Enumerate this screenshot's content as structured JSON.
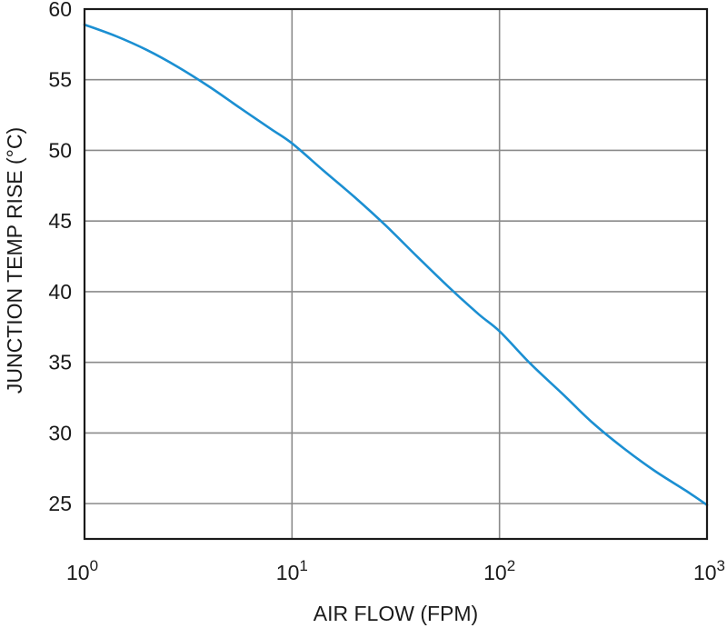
{
  "chart_data": {
    "type": "line",
    "title": "",
    "xlabel": "AIR FLOW (FPM)",
    "ylabel": "JUNCTION TEMP RISE (°C)",
    "x_scale": "log",
    "xlim": [
      1,
      1000
    ],
    "ylim": [
      22.5,
      60
    ],
    "grid": true,
    "x_ticks": [
      {
        "value": 1,
        "base": "10",
        "exp": "0"
      },
      {
        "value": 10,
        "base": "10",
        "exp": "1"
      },
      {
        "value": 100,
        "base": "10",
        "exp": "2"
      },
      {
        "value": 1000,
        "base": "10",
        "exp": "3"
      }
    ],
    "y_ticks": [
      {
        "value": 25,
        "label": "25"
      },
      {
        "value": 30,
        "label": "30"
      },
      {
        "value": 35,
        "label": "35"
      },
      {
        "value": 40,
        "label": "40"
      },
      {
        "value": 45,
        "label": "45"
      },
      {
        "value": 50,
        "label": "50"
      },
      {
        "value": 55,
        "label": "55"
      },
      {
        "value": 60,
        "label": "60"
      }
    ],
    "series": [
      {
        "color": "#1b8fd2",
        "x": [
          1,
          1.41,
          2,
          2.82,
          4,
          5.62,
          7.94,
          10,
          14.1,
          20,
          28.2,
          40,
          56.2,
          79.4,
          100,
          141,
          200,
          282,
          398,
          562,
          794,
          1000
        ],
        "y": [
          58.9,
          58.1,
          57.1,
          55.9,
          54.5,
          53.0,
          51.5,
          50.5,
          48.6,
          46.7,
          44.7,
          42.5,
          40.4,
          38.4,
          37.2,
          34.9,
          32.8,
          30.7,
          28.9,
          27.3,
          25.9,
          24.9
        ]
      }
    ]
  }
}
